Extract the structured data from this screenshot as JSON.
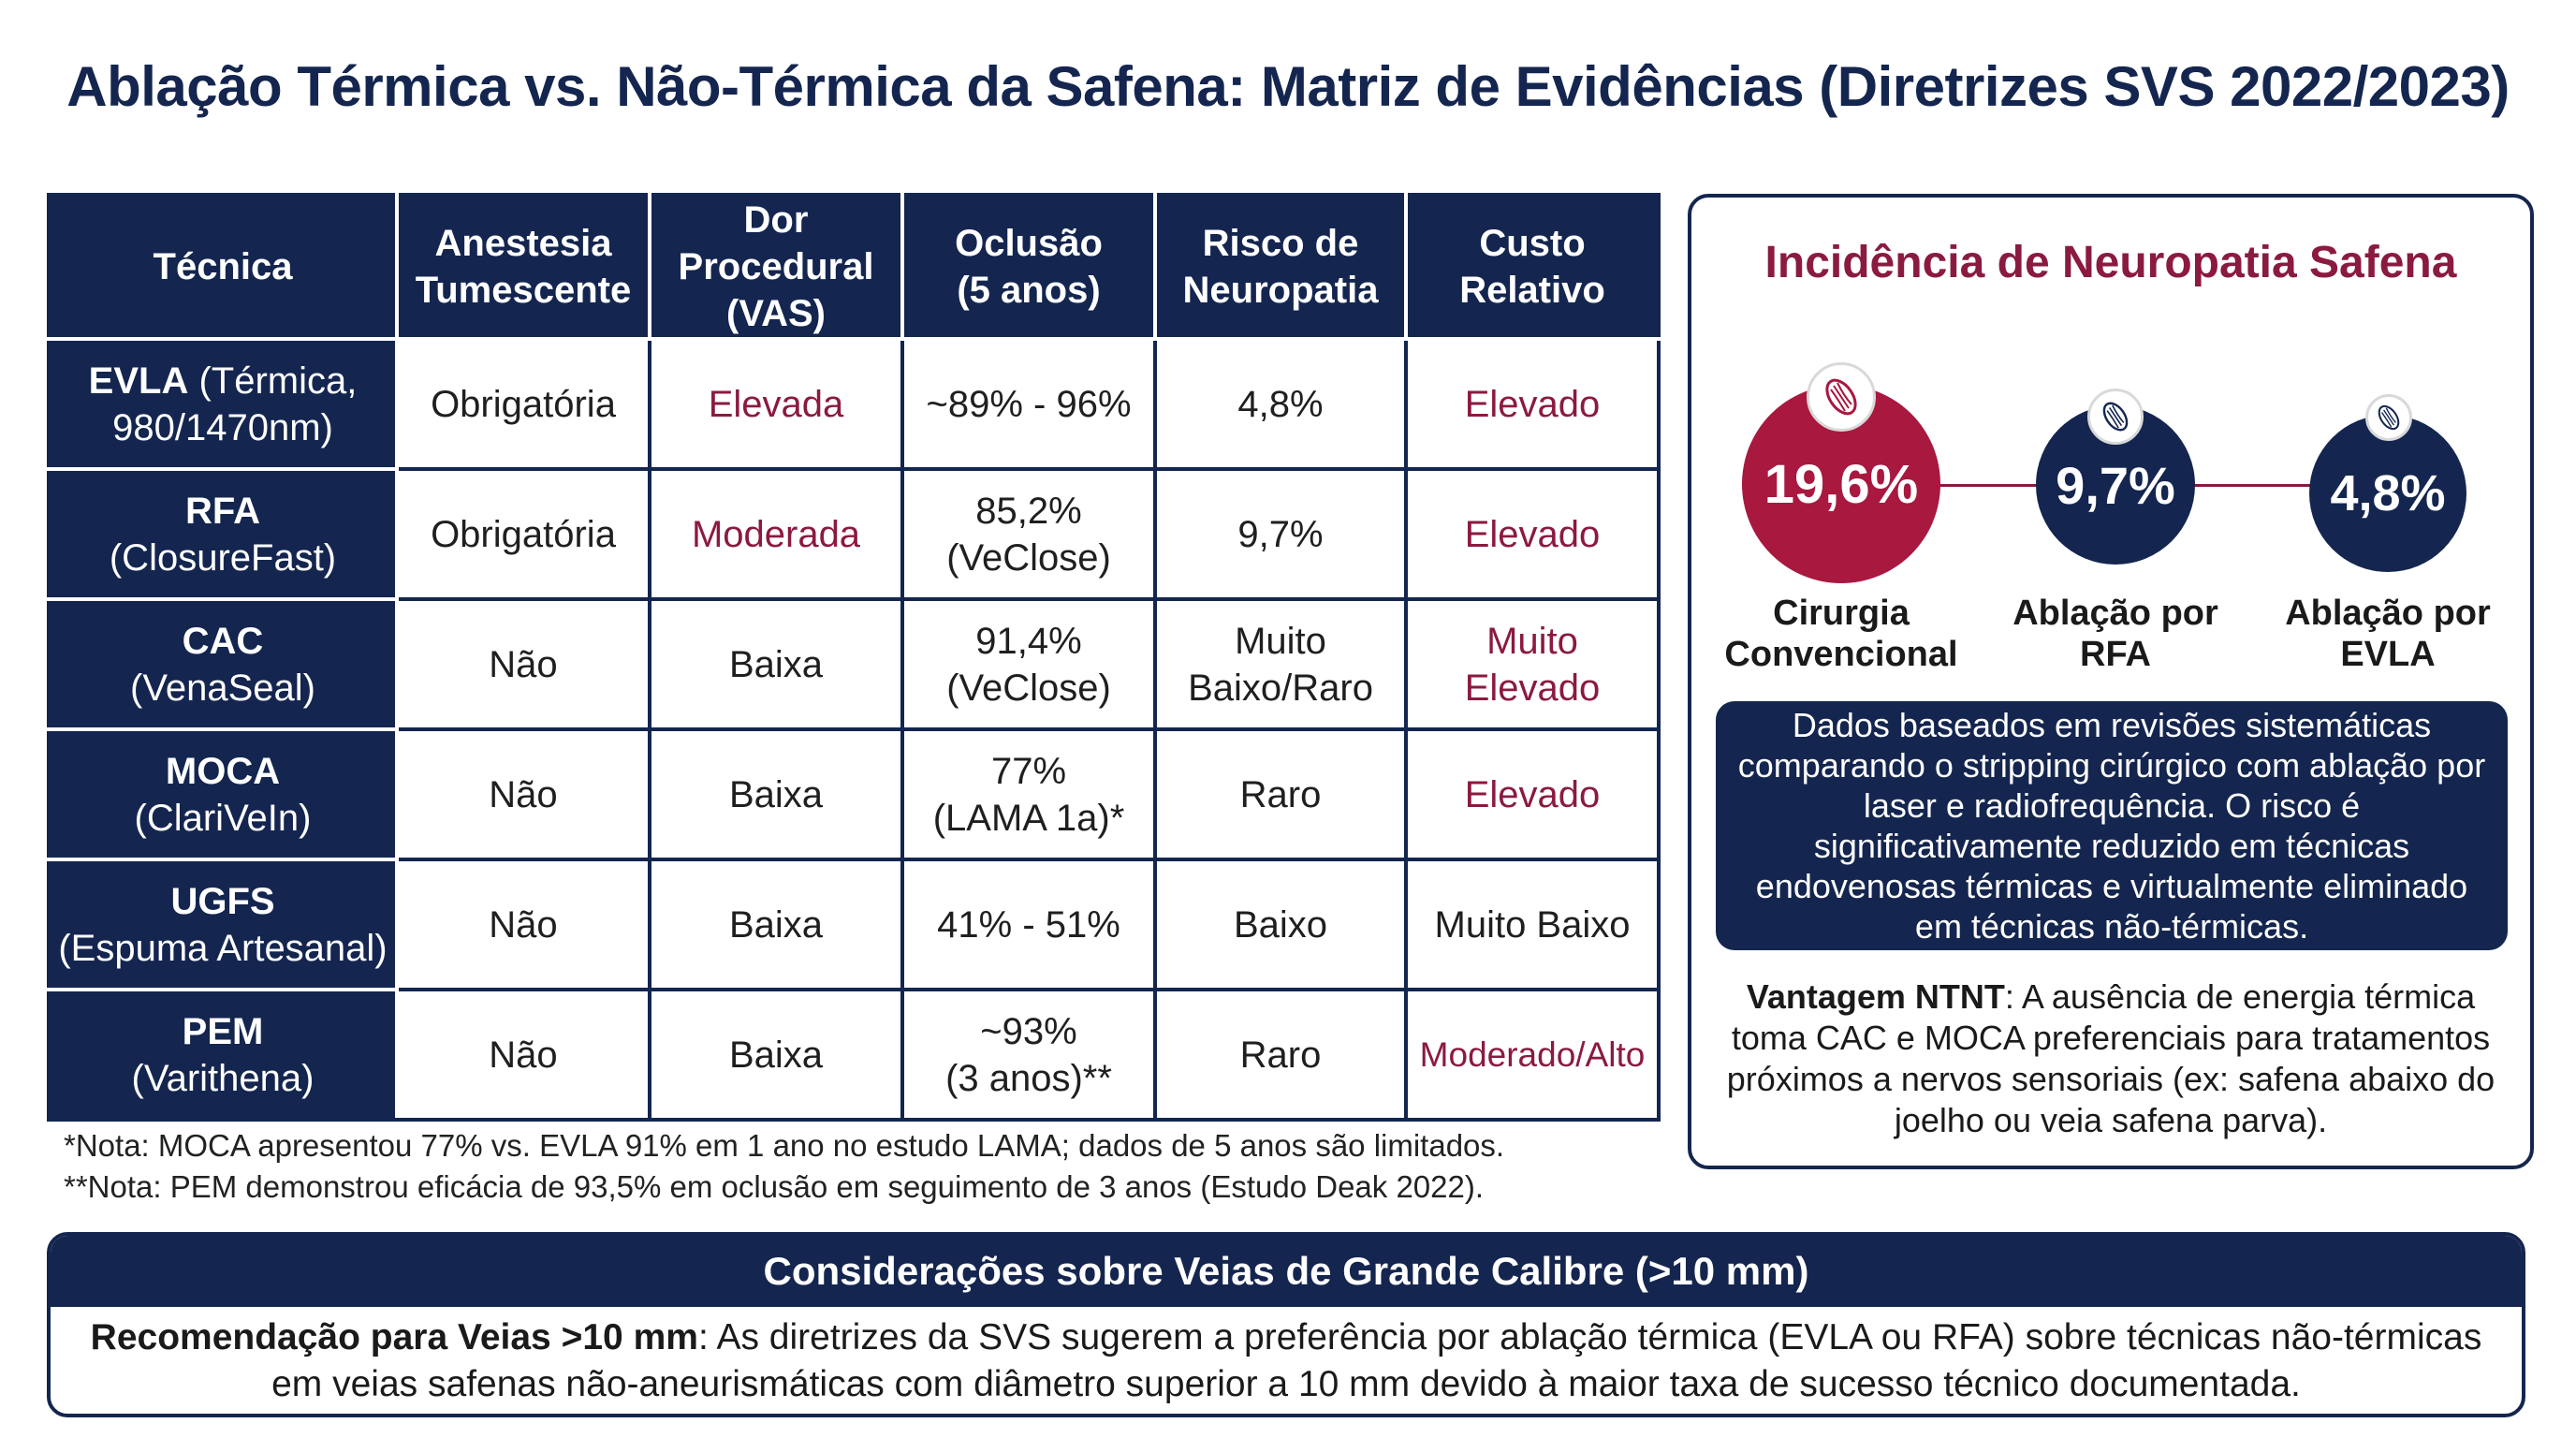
{
  "title": "Ablação Térmica vs. Não-Térmica da Safena: Matriz de Evidências (Diretrizes SVS 2022/2023)",
  "table": {
    "headers": [
      [
        "Técnica"
      ],
      [
        "Anestesia",
        "Tumescente"
      ],
      [
        "Dor",
        "Procedural",
        "(VAS)"
      ],
      [
        "Oclusão",
        "(5 anos)"
      ],
      [
        "Risco de",
        "Neuropatia"
      ],
      [
        "Custo",
        "Relativo"
      ]
    ],
    "rows": [
      {
        "name": "EVLA",
        "sub": " (Térmica,",
        "sub2": "980/1470nm)",
        "anestesia": "Obrigatória",
        "dor": "Elevada",
        "oclusao": [
          "~89% - 96%"
        ],
        "risco": [
          "4,8%"
        ],
        "custo": [
          "Elevado"
        ]
      },
      {
        "name": "RFA",
        "sub": "",
        "sub2": "(ClosureFast)",
        "anestesia": "Obrigatória",
        "dor": "Moderada",
        "oclusao": [
          "85,2%",
          "(VeClose)"
        ],
        "risco": [
          "9,7%"
        ],
        "custo": [
          "Elevado"
        ]
      },
      {
        "name": "CAC",
        "sub": "",
        "sub2": "(VenaSeal)",
        "anestesia": "Não",
        "dor": "Baixa",
        "oclusao": [
          "91,4%",
          "(VeClose)"
        ],
        "risco": [
          "Muito",
          "Baixo/Raro"
        ],
        "custo": [
          "Muito",
          "Elevado"
        ]
      },
      {
        "name": "MOCA",
        "sub": "",
        "sub2": "(ClariVeIn)",
        "anestesia": "Não",
        "dor": "Baixa",
        "oclusao": [
          "77%",
          "(LAMA 1a)*"
        ],
        "risco": [
          "Raro"
        ],
        "custo": [
          "Elevado"
        ]
      },
      {
        "name": "UGFS",
        "sub": "",
        "sub2": "(Espuma Artesanal)",
        "anestesia": "Não",
        "dor": "Baixa",
        "oclusao": [
          "41% - 51%"
        ],
        "risco": [
          "Baixo"
        ],
        "custo": [
          "Muito Baixo"
        ]
      },
      {
        "name": "PEM",
        "sub": "",
        "sub2": "(Varithena)",
        "anestesia": "Não",
        "dor": "Baixa",
        "oclusao": [
          "~93%",
          "(3 anos)**"
        ],
        "risco": [
          "Raro"
        ],
        "custo": [
          "Moderado/Alto"
        ]
      }
    ],
    "highlight_color": "#8b1a3f"
  },
  "notes": [
    "*Nota: MOCA apresentou 77% vs. EVLA 91% em 1 ano no estudo LAMA; dados de 5 anos são limitados.",
    "**Nota: PEM demonstrou eficácia de 93,5% em oclusão em seguimento de 3 anos (Estudo Deak 2022)."
  ],
  "panel": {
    "title": "Incidência de Neuropatia Safena",
    "bubbles": [
      {
        "value": "19,6%",
        "label": [
          "Cirurgia",
          "Convencional"
        ],
        "color": "#a8183f",
        "icon": "nerve-icon"
      },
      {
        "value": "9,7%",
        "label": [
          "Ablação por",
          "RFA"
        ],
        "color": "#14264f",
        "icon": "nerve-icon"
      },
      {
        "value": "4,8%",
        "label": [
          "Ablação por",
          "EVLA"
        ],
        "color": "#14264f",
        "icon": "nerve-icon"
      }
    ],
    "info": "Dados baseados em revisões sistemáticas comparando o stripping cirúrgico com ablação por laser e radiofrequência. O risco é significativamente reduzido em técnicas endovenosas térmicas e virtualmente eliminado em técnicas não-térmicas.",
    "advantage_bold": "Vantagem NTNT",
    "advantage_text": ": A ausência de energia térmica toma CAC e MOCA preferenciais para tratamentos próximos a nervos sensoriais (ex: safena abaixo do joelho ou veia safena parva)."
  },
  "bottom": {
    "heading": "Considerações sobre Veias de Grande Calibre (>10 mm)",
    "bold": "Recomendação para Veias >10 mm",
    "text": ": As diretrizes da SVS sugerem a preferência por ablação térmica (EVLA ou RFA) sobre técnicas não-térmicas em veias safenas não-aneurismáticas com diâmetro superior a 10 mm devido à maior taxa de sucesso técnico documentada."
  }
}
